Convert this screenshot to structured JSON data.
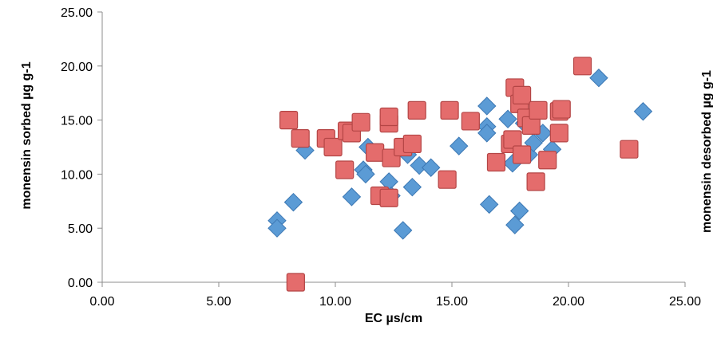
{
  "chart_data": {
    "type": "scatter",
    "title": "",
    "xlabel": "EC µs/cm",
    "ylabel": "monensin sorbed µg g-1",
    "ylabel_right": "monensin desorbed µg g-1",
    "xlim": [
      0,
      25
    ],
    "ylim": [
      0,
      25
    ],
    "x_ticks": [
      "0.00",
      "5.00",
      "10.00",
      "15.00",
      "20.00",
      "25.00"
    ],
    "y_ticks": [
      "0.00",
      "5.00",
      "10.00",
      "15.00",
      "20.00",
      "25.00"
    ],
    "grid": false,
    "legend": "none",
    "series": [
      {
        "marker": "diamond",
        "color": "#5B9BD5",
        "points": [
          [
            7.5,
            5.7
          ],
          [
            7.5,
            5.0
          ],
          [
            8.2,
            7.4
          ],
          [
            8.7,
            12.2
          ],
          [
            9.7,
            13.0
          ],
          [
            10.7,
            7.9
          ],
          [
            11.2,
            10.4
          ],
          [
            11.3,
            10.0
          ],
          [
            11.4,
            12.5
          ],
          [
            12.3,
            9.3
          ],
          [
            12.4,
            8.0
          ],
          [
            12.9,
            4.8
          ],
          [
            13.1,
            11.8
          ],
          [
            13.3,
            8.8
          ],
          [
            13.6,
            10.8
          ],
          [
            14.1,
            10.6
          ],
          [
            15.3,
            12.6
          ],
          [
            16.5,
            16.3
          ],
          [
            16.5,
            14.4
          ],
          [
            16.5,
            13.8
          ],
          [
            16.6,
            7.2
          ],
          [
            17.4,
            15.1
          ],
          [
            17.6,
            11.0
          ],
          [
            17.7,
            5.3
          ],
          [
            17.9,
            6.6
          ],
          [
            18.1,
            14.7
          ],
          [
            18.3,
            11.8
          ],
          [
            18.5,
            12.9
          ],
          [
            18.9,
            13.8
          ],
          [
            19.3,
            12.3
          ],
          [
            21.3,
            18.9
          ],
          [
            23.2,
            15.8
          ]
        ]
      },
      {
        "marker": "square",
        "color": "#E46C6C",
        "points": [
          [
            8.0,
            15.0
          ],
          [
            8.3,
            0.0
          ],
          [
            8.5,
            13.3
          ],
          [
            9.6,
            13.3
          ],
          [
            9.9,
            12.5
          ],
          [
            10.4,
            10.4
          ],
          [
            10.5,
            14.0
          ],
          [
            10.7,
            13.8
          ],
          [
            11.1,
            14.8
          ],
          [
            11.7,
            12.0
          ],
          [
            11.9,
            8.0
          ],
          [
            12.3,
            7.8
          ],
          [
            12.3,
            14.7
          ],
          [
            12.3,
            15.3
          ],
          [
            12.4,
            11.5
          ],
          [
            12.9,
            12.5
          ],
          [
            13.3,
            12.8
          ],
          [
            13.5,
            15.9
          ],
          [
            14.8,
            9.5
          ],
          [
            14.9,
            15.9
          ],
          [
            15.8,
            14.9
          ],
          [
            16.9,
            11.1
          ],
          [
            17.5,
            12.8
          ],
          [
            17.6,
            13.2
          ],
          [
            17.7,
            18.0
          ],
          [
            17.9,
            16.5
          ],
          [
            18.0,
            17.3
          ],
          [
            18.0,
            11.8
          ],
          [
            18.2,
            15.2
          ],
          [
            18.4,
            14.5
          ],
          [
            18.6,
            9.3
          ],
          [
            18.7,
            15.9
          ],
          [
            19.1,
            11.3
          ],
          [
            19.6,
            13.8
          ],
          [
            19.6,
            15.8
          ],
          [
            19.7,
            16.0
          ],
          [
            20.6,
            20.0
          ],
          [
            22.6,
            12.3
          ]
        ]
      }
    ]
  }
}
